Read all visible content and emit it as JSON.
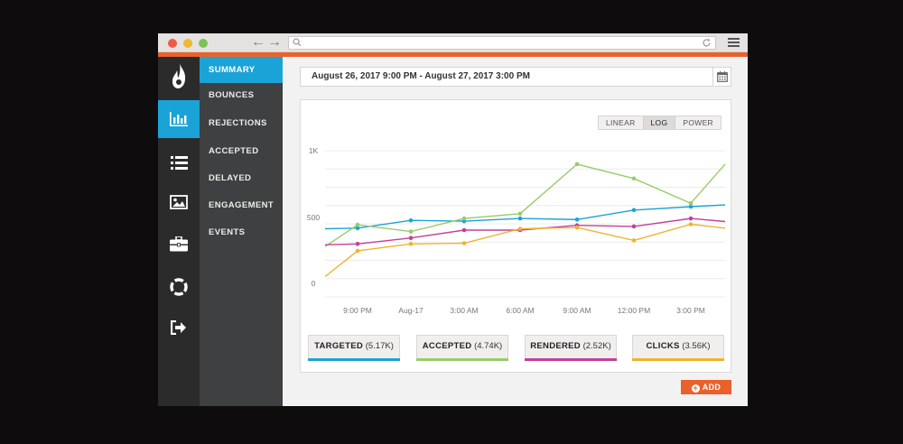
{
  "browser": {
    "back_icon": "arrow-left",
    "forward_icon": "arrow-right",
    "url_value": "",
    "menu_icon": "hamburger"
  },
  "colors": {
    "accent": "#e9622c",
    "active_blue": "#1ba3d7",
    "targeted": "#1ba3d7",
    "accepted": "#98cc6a",
    "rendered": "#c2409a",
    "clicks": "#f0b32e"
  },
  "rail": {
    "items": [
      {
        "icon": "flame-logo"
      },
      {
        "icon": "bar-chart-icon",
        "active": true
      },
      {
        "icon": "list-icon"
      },
      {
        "icon": "image-icon"
      },
      {
        "icon": "briefcase-icon"
      },
      {
        "icon": "lifebuoy-icon"
      },
      {
        "icon": "logout-icon"
      }
    ]
  },
  "nav": {
    "items": [
      {
        "label": "SUMMARY",
        "active": true
      },
      {
        "label": "BOUNCES"
      },
      {
        "label": "REJECTIONS"
      },
      {
        "label": "ACCEPTED"
      },
      {
        "label": "DELAYED"
      },
      {
        "label": "ENGAGEMENT"
      },
      {
        "label": "EVENTS"
      }
    ]
  },
  "date_range": {
    "text": "August 26, 2017 9:00 PM - August 27, 2017 3:00 PM",
    "calendar_icon": "calendar-icon"
  },
  "scale_toggle": {
    "options": [
      "LINEAR",
      "LOG",
      "POWER"
    ],
    "selected": "LOG"
  },
  "chart_data": {
    "type": "line",
    "scale": "log",
    "grid": true,
    "y_ticks": [
      "1K",
      "500",
      "0"
    ],
    "x_ticks": [
      "9:00 PM",
      "Aug-17",
      "3:00 AM",
      "6:00 AM",
      "9:00 AM",
      "12:00 PM",
      "3:00 PM"
    ],
    "x": [
      "8:00 PM",
      "9:00 PM",
      "10:00 PM",
      "11:00 PM",
      "1:00 AM",
      "3:00 AM",
      "6:00 AM",
      "9:00 AM",
      "12:00 PM",
      "3:00 PM",
      "4:00 PM"
    ],
    "series": [
      {
        "name": "TARGETED",
        "color": "#1ba3d7",
        "values": [
          250,
          260,
          420,
          400,
          470,
          440,
          540,
          560,
          570,
          null,
          null
        ]
      },
      {
        "name": "ACCEPTED",
        "color": "#98cc6a",
        "values": [
          80,
          320,
          210,
          470,
          520,
          870,
          750,
          580,
          870,
          null,
          null
        ]
      },
      {
        "name": "RENDERED",
        "color": "#c2409a",
        "values": [
          90,
          95,
          140,
          230,
          230,
          310,
          290,
          470,
          390,
          null,
          null
        ]
      },
      {
        "name": "CLICKS",
        "color": "#f0b32e",
        "values": [
          5,
          60,
          95,
          100,
          250,
          270,
          120,
          330,
          260,
          null,
          null
        ]
      }
    ]
  },
  "legend": [
    {
      "name": "TARGETED",
      "count": "(5.17K)",
      "color": "#1ba3d7"
    },
    {
      "name": "ACCEPTED",
      "count": "(4.74K)",
      "color": "#98cc6a"
    },
    {
      "name": "RENDERED",
      "count": "(2.52K)",
      "color": "#c2409a"
    },
    {
      "name": "CLICKS",
      "count": "(3.56K)",
      "color": "#f0b32e"
    }
  ],
  "add_button": {
    "label": "ADD",
    "icon": "plus-circle-icon"
  }
}
